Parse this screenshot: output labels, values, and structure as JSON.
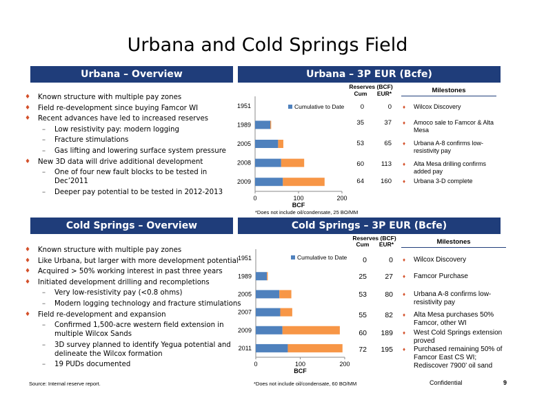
{
  "title": "Urbana and Cold Springs Field",
  "urbana_overview": {
    "heading": "Urbana – Overview",
    "bullets": [
      {
        "level": 1,
        "text": "Known structure with multiple pay zones"
      },
      {
        "level": 1,
        "text": "Field re-development since buying Famcor WI"
      },
      {
        "level": 1,
        "text": "Recent advances have led to increased reserves"
      },
      {
        "level": 2,
        "text": "Low resistivity pay: modern logging"
      },
      {
        "level": 2,
        "text": "Fracture stimulations"
      },
      {
        "level": 2,
        "text": "Gas lifting and lowering surface system pressure"
      },
      {
        "level": 1,
        "text": "New 3D data will drive additional development"
      },
      {
        "level": 2,
        "text": "One of four new fault blocks to be tested in Dec’2011"
      },
      {
        "level": 2,
        "text": "Deeper pay potential to be tested in 2012-2013"
      }
    ]
  },
  "urbana_eur": {
    "heading": "Urbana – 3P EUR (Bcfe)",
    "reserves_label": "Reserves (BCF)",
    "cum_label": "Cum",
    "eur_label": "EUR*",
    "milestones_label": "Milestones",
    "rows": [
      {
        "cum": "0",
        "eur": "0",
        "milestone": "Wilcox Discovery"
      },
      {
        "cum": "35",
        "eur": "37",
        "milestone": "Amoco sale to Famcor & Alta Mesa"
      },
      {
        "cum": "53",
        "eur": "65",
        "milestone": "Urbana A-8 confirms low-resistivity pay"
      },
      {
        "cum": "60",
        "eur": "113",
        "milestone": "Alta Mesa drilling confirms added pay"
      },
      {
        "cum": "64",
        "eur": "160",
        "milestone": "Urbana 3-D complete"
      }
    ],
    "footnote": "*Does not include oil/condensate, 25 BO/MM"
  },
  "cold_overview": {
    "heading": "Cold Springs – Overview",
    "bullets": [
      {
        "level": 1,
        "text": "Known structure with multiple pay zones"
      },
      {
        "level": 1,
        "text": "Like Urbana, but larger with more development potential"
      },
      {
        "level": 1,
        "text": "Acquired > 50% working interest in past three years"
      },
      {
        "level": 1,
        "text": "Initiated development drilling and recompletions"
      },
      {
        "level": 2,
        "text": "Very low-resistivity pay (<0.8 ohms)"
      },
      {
        "level": 2,
        "text": "Modern logging technology and fracture stimulations"
      },
      {
        "level": 1,
        "text": "Field re-development and expansion"
      },
      {
        "level": 2,
        "text": "Confirmed 1,500-acre western field extension in multiple Wilcox Sands"
      },
      {
        "level": 2,
        "text": "3D survey planned to identify Yegua potential and delineate the Wilcox formation"
      },
      {
        "level": 2,
        "text": "19 PUDs documented"
      }
    ]
  },
  "cold_eur": {
    "heading": "Cold Springs – 3P EUR (Bcfe)",
    "reserves_label": "Reserves (BCF)",
    "cum_label": "Cum",
    "eur_label": "EUR*",
    "milestones_label": "Milestones",
    "rows": [
      {
        "cum": "0",
        "eur": "0",
        "milestone": "Wilcox Discovery"
      },
      {
        "cum": "25",
        "eur": "27",
        "milestone": "Famcor Purchase"
      },
      {
        "cum": "53",
        "eur": "80",
        "milestone": "Urbana A-8 confirms low-resistivity pay"
      },
      {
        "cum": "55",
        "eur": "82",
        "milestone": "Alta Mesa purchases 50% Famcor, other WI"
      },
      {
        "cum": "60",
        "eur": "189",
        "milestone": "West Cold Springs extension proved"
      },
      {
        "cum": "72",
        "eur": "195",
        "milestone": "Purchased remaining 50% of Famcor East CS WI; Rediscover 7900’ oil sand"
      }
    ],
    "footnote": "*Does not include oil/condensate, 60 BO/MM"
  },
  "footer": {
    "source": "Source: Internal reserve report.",
    "confidential": "Confidential",
    "page": "9"
  },
  "colors": {
    "banner": "#1f3d7a",
    "cumulative": "#4f81bd",
    "eur_extra": "#f79646",
    "bullet": "#d4502a"
  },
  "chart_data": [
    {
      "type": "bar",
      "orientation": "horizontal",
      "stacked": true,
      "categories": [
        "1951",
        "1989",
        "2005",
        "2008",
        "2009"
      ],
      "series": [
        {
          "name": "Cumulative to Date",
          "values": [
            0,
            35,
            53,
            60,
            64
          ]
        },
        {
          "values": [
            0,
            2,
            12,
            53,
            96
          ]
        }
      ],
      "xlabel": "BCF",
      "xlim": [
        0,
        200
      ],
      "xticks": [
        0,
        100,
        200
      ],
      "legend": "top-right"
    },
    {
      "type": "bar",
      "orientation": "horizontal",
      "stacked": true,
      "categories": [
        "1951",
        "1989",
        "2005",
        "2007",
        "2009",
        "2011"
      ],
      "series": [
        {
          "name": "Cumulative to Date",
          "values": [
            0,
            25,
            53,
            55,
            60,
            72
          ]
        },
        {
          "values": [
            0,
            2,
            27,
            27,
            129,
            123
          ]
        }
      ],
      "xlabel": "BCF",
      "xlim": [
        0,
        200
      ],
      "xticks": [
        0,
        100,
        200
      ],
      "legend": "top-right"
    }
  ]
}
